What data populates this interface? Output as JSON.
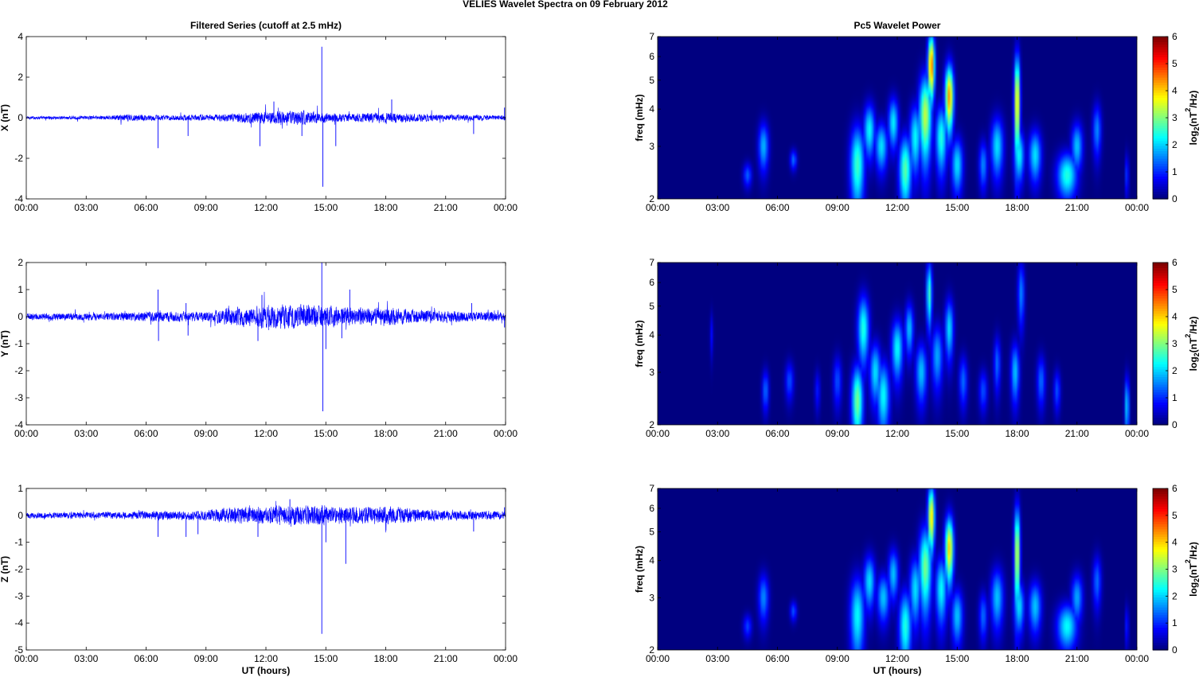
{
  "figure_title": "VELIES Wavelet Spectra on 09 February  2012",
  "left_column_title": "Filtered Series (cutoff at 2.5 mHz)",
  "right_column_title": "Pc5 Wavelet Power",
  "chart_data": [
    {
      "type": "line",
      "component": "X",
      "ylabel": "X (nT)",
      "xlabel": "",
      "ylim": [
        -4,
        4
      ],
      "yticks": [
        -4,
        -2,
        0,
        2,
        4
      ],
      "xticks": [
        "00:00",
        "03:00",
        "06:00",
        "09:00",
        "12:00",
        "15:00",
        "18:00",
        "21:00",
        "00:00"
      ],
      "xlim_hours": [
        0,
        24
      ],
      "line_color": "#0000ff",
      "noise": {
        "base": 0.05,
        "activity": [
          [
            0,
            0.05
          ],
          [
            4,
            0.06
          ],
          [
            5,
            0.12
          ],
          [
            7,
            0.08
          ],
          [
            10,
            0.12
          ],
          [
            12,
            0.2
          ],
          [
            14,
            0.22
          ],
          [
            16,
            0.12
          ],
          [
            18,
            0.18
          ],
          [
            19,
            0.14
          ],
          [
            21,
            0.1
          ],
          [
            24,
            0.08
          ]
        ]
      },
      "spikes": [
        [
          6.6,
          -1.5
        ],
        [
          8.1,
          -0.9
        ],
        [
          11.7,
          -1.4
        ],
        [
          12.4,
          0.8
        ],
        [
          13.8,
          -0.9
        ],
        [
          14.8,
          3.5
        ],
        [
          14.85,
          -3.4
        ],
        [
          15.5,
          -1.4
        ],
        [
          18.3,
          0.9
        ],
        [
          22.4,
          -0.8
        ],
        [
          23.95,
          0.5
        ]
      ]
    },
    {
      "type": "line",
      "component": "Y",
      "ylabel": "Y (nT)",
      "xlabel": "",
      "ylim": [
        -4,
        2
      ],
      "yticks": [
        -4,
        -3,
        -2,
        -1,
        0,
        1,
        2
      ],
      "xticks": [
        "00:00",
        "03:00",
        "06:00",
        "09:00",
        "12:00",
        "15:00",
        "18:00",
        "21:00",
        "00:00"
      ],
      "xlim_hours": [
        0,
        24
      ],
      "line_color": "#0000ff",
      "noise": {
        "base": 0.08,
        "activity": [
          [
            0,
            0.08
          ],
          [
            4,
            0.09
          ],
          [
            6,
            0.12
          ],
          [
            9,
            0.12
          ],
          [
            10,
            0.2
          ],
          [
            12,
            0.28
          ],
          [
            14,
            0.28
          ],
          [
            16,
            0.22
          ],
          [
            18,
            0.22
          ],
          [
            20,
            0.15
          ],
          [
            24,
            0.1
          ]
        ]
      },
      "spikes": [
        [
          6.6,
          1.0
        ],
        [
          6.62,
          -0.9
        ],
        [
          8.0,
          0.5
        ],
        [
          8.1,
          -0.7
        ],
        [
          11.6,
          -0.9
        ],
        [
          11.8,
          0.8
        ],
        [
          14.8,
          2.0
        ],
        [
          14.85,
          -3.5
        ],
        [
          15.0,
          -1.2
        ],
        [
          15.8,
          -0.8
        ],
        [
          16.2,
          1.0
        ],
        [
          22.3,
          0.5
        ],
        [
          23.95,
          -0.4
        ]
      ]
    },
    {
      "type": "line",
      "component": "Z",
      "ylabel": "Z (nT)",
      "xlabel": "UT (hours)",
      "ylim": [
        -5,
        1
      ],
      "yticks": [
        -5,
        -4,
        -3,
        -2,
        -1,
        0,
        1
      ],
      "xticks": [
        "00:00",
        "03:00",
        "06:00",
        "09:00",
        "12:00",
        "15:00",
        "18:00",
        "21:00",
        "00:00"
      ],
      "xlim_hours": [
        0,
        24
      ],
      "line_color": "#0000ff",
      "noise": {
        "base": 0.06,
        "activity": [
          [
            0,
            0.07
          ],
          [
            4,
            0.08
          ],
          [
            6,
            0.1
          ],
          [
            9,
            0.12
          ],
          [
            10,
            0.18
          ],
          [
            12,
            0.22
          ],
          [
            14,
            0.25
          ],
          [
            16,
            0.2
          ],
          [
            18,
            0.22
          ],
          [
            20,
            0.14
          ],
          [
            24,
            0.1
          ]
        ]
      },
      "spikes": [
        [
          6.6,
          -0.8
        ],
        [
          8.0,
          -0.8
        ],
        [
          8.6,
          -0.7
        ],
        [
          11.6,
          -0.8
        ],
        [
          13.2,
          0.6
        ],
        [
          14.8,
          -4.4
        ],
        [
          15.0,
          -1.0
        ],
        [
          16.0,
          -1.8
        ],
        [
          22.4,
          -0.6
        ],
        [
          23.95,
          0.3
        ]
      ]
    },
    {
      "type": "heatmap",
      "component": "X",
      "ylabel": "freq (mHz)",
      "xlabel": "",
      "yscale": "log",
      "ylim": [
        2,
        7
      ],
      "yticks": [
        2,
        3,
        4,
        5,
        6,
        7
      ],
      "xticks": [
        "00:00",
        "03:00",
        "06:00",
        "09:00",
        "12:00",
        "15:00",
        "18:00",
        "21:00",
        "00:00"
      ],
      "xlim_hours": [
        0,
        24
      ],
      "colorbar_label": "log2(nT^2/Hz)",
      "colorbar_label_parts": {
        "base": "log",
        "sub": "2",
        "open": "(nT",
        "sup": "2",
        "close": "/Hz)"
      },
      "colorbar_range": [
        0,
        6
      ],
      "colorbar_ticks": [
        0,
        1,
        2,
        3,
        4,
        5,
        6
      ],
      "colormap": "jet",
      "blobs": [
        [
          4.5,
          2.4,
          0.15,
          0.16,
          1.5
        ],
        [
          5.3,
          3.0,
          0.18,
          0.4,
          2.1
        ],
        [
          6.8,
          2.7,
          0.12,
          0.15,
          1.6
        ],
        [
          10.0,
          2.6,
          0.25,
          0.6,
          3.0
        ],
        [
          10.6,
          3.4,
          0.2,
          0.5,
          2.6
        ],
        [
          11.2,
          3.0,
          0.22,
          0.4,
          2.4
        ],
        [
          11.8,
          3.6,
          0.18,
          0.5,
          2.5
        ],
        [
          12.4,
          2.5,
          0.22,
          0.5,
          3.2
        ],
        [
          12.9,
          3.2,
          0.2,
          0.6,
          2.6
        ],
        [
          13.4,
          3.8,
          0.22,
          0.9,
          3.9
        ],
        [
          13.7,
          5.6,
          0.12,
          1.0,
          5.3
        ],
        [
          14.2,
          3.2,
          0.2,
          0.6,
          2.8
        ],
        [
          14.6,
          4.4,
          0.15,
          0.8,
          5.0
        ],
        [
          15.0,
          2.6,
          0.2,
          0.4,
          2.4
        ],
        [
          16.3,
          2.6,
          0.15,
          0.35,
          1.8
        ],
        [
          17.0,
          3.0,
          0.22,
          0.5,
          2.4
        ],
        [
          18.0,
          4.2,
          0.1,
          1.2,
          4.7
        ],
        [
          18.1,
          2.8,
          0.18,
          0.4,
          2.6
        ],
        [
          18.9,
          2.8,
          0.22,
          0.4,
          2.4
        ],
        [
          20.5,
          2.4,
          0.35,
          0.3,
          2.8
        ],
        [
          21.0,
          3.0,
          0.2,
          0.4,
          2.2
        ],
        [
          22.0,
          3.4,
          0.15,
          0.5,
          1.8
        ],
        [
          23.5,
          2.4,
          0.06,
          0.3,
          1.4
        ]
      ]
    },
    {
      "type": "heatmap",
      "component": "Y",
      "ylabel": "freq (mHz)",
      "xlabel": "",
      "yscale": "log",
      "ylim": [
        2,
        7
      ],
      "yticks": [
        2,
        3,
        4,
        5,
        6,
        7
      ],
      "xticks": [
        "00:00",
        "03:00",
        "06:00",
        "09:00",
        "12:00",
        "15:00",
        "18:00",
        "21:00",
        "00:00"
      ],
      "xlim_hours": [
        0,
        24
      ],
      "colorbar_label": "log2(nT^2/Hz)",
      "colorbar_label_parts": {
        "base": "log",
        "sub": "2",
        "open": "(nT",
        "sup": "2",
        "close": "/Hz)"
      },
      "colorbar_range": [
        0,
        6
      ],
      "colorbar_ticks": [
        0,
        1,
        2,
        3,
        4,
        5,
        6
      ],
      "colormap": "jet",
      "blobs": [
        [
          2.7,
          4.0,
          0.06,
          0.5,
          0.9
        ],
        [
          5.4,
          2.6,
          0.12,
          0.3,
          1.6
        ],
        [
          6.6,
          2.8,
          0.15,
          0.3,
          1.4
        ],
        [
          8.0,
          2.6,
          0.1,
          0.3,
          1.0
        ],
        [
          9.0,
          2.8,
          0.15,
          0.4,
          1.4
        ],
        [
          10.0,
          2.4,
          0.2,
          0.5,
          3.4
        ],
        [
          10.3,
          4.2,
          0.2,
          0.8,
          2.8
        ],
        [
          10.9,
          3.0,
          0.2,
          0.5,
          2.4
        ],
        [
          11.3,
          2.5,
          0.22,
          0.5,
          2.6
        ],
        [
          12.0,
          3.6,
          0.2,
          0.6,
          2.6
        ],
        [
          12.6,
          4.2,
          0.15,
          0.6,
          2.2
        ],
        [
          13.2,
          3.0,
          0.2,
          0.5,
          2.2
        ],
        [
          13.6,
          5.5,
          0.1,
          1.0,
          3.0
        ],
        [
          14.0,
          3.4,
          0.2,
          0.6,
          2.0
        ],
        [
          14.6,
          4.2,
          0.15,
          0.7,
          2.4
        ],
        [
          15.3,
          2.8,
          0.15,
          0.4,
          1.6
        ],
        [
          16.3,
          2.6,
          0.15,
          0.3,
          1.4
        ],
        [
          17.0,
          3.2,
          0.12,
          0.5,
          1.6
        ],
        [
          17.9,
          3.0,
          0.15,
          0.5,
          2.2
        ],
        [
          18.2,
          5.5,
          0.12,
          1.0,
          1.8
        ],
        [
          19.2,
          2.8,
          0.15,
          0.4,
          1.6
        ],
        [
          20.0,
          2.6,
          0.12,
          0.3,
          1.4
        ],
        [
          23.5,
          2.3,
          0.08,
          0.4,
          2.4
        ]
      ]
    },
    {
      "type": "heatmap",
      "component": "Z",
      "ylabel": "freq (mHz)",
      "xlabel": "UT (hours)",
      "yscale": "log",
      "ylim": [
        2,
        7
      ],
      "yticks": [
        2,
        3,
        4,
        5,
        6,
        7
      ],
      "xticks": [
        "00:00",
        "03:00",
        "06:00",
        "09:00",
        "12:00",
        "15:00",
        "18:00",
        "21:00",
        "00:00"
      ],
      "xlim_hours": [
        0,
        24
      ],
      "colorbar_label": "log2(nT^2/Hz)",
      "colorbar_label_parts": {
        "base": "log",
        "sub": "2",
        "open": "(nT",
        "sup": "2",
        "close": "/Hz)"
      },
      "colorbar_range": [
        0,
        6
      ],
      "colorbar_ticks": [
        0,
        1,
        2,
        3,
        4,
        5,
        6
      ],
      "colormap": "jet",
      "blobs": [
        [
          4.5,
          2.4,
          0.15,
          0.16,
          1.3
        ],
        [
          5.3,
          3.0,
          0.18,
          0.4,
          1.8
        ],
        [
          6.8,
          2.7,
          0.12,
          0.15,
          1.4
        ],
        [
          10.0,
          2.6,
          0.25,
          0.6,
          2.6
        ],
        [
          10.6,
          3.4,
          0.2,
          0.5,
          2.4
        ],
        [
          11.3,
          3.0,
          0.22,
          0.4,
          2.2
        ],
        [
          11.8,
          3.6,
          0.18,
          0.5,
          2.2
        ],
        [
          12.4,
          2.4,
          0.22,
          0.5,
          2.8
        ],
        [
          12.9,
          3.2,
          0.2,
          0.6,
          2.4
        ],
        [
          13.4,
          3.8,
          0.22,
          0.9,
          3.4
        ],
        [
          13.7,
          5.6,
          0.12,
          1.0,
          4.6
        ],
        [
          14.2,
          3.2,
          0.2,
          0.6,
          2.6
        ],
        [
          14.6,
          4.4,
          0.15,
          0.8,
          4.6
        ],
        [
          15.0,
          2.6,
          0.2,
          0.4,
          2.2
        ],
        [
          16.3,
          2.6,
          0.15,
          0.35,
          1.6
        ],
        [
          17.0,
          3.0,
          0.22,
          0.5,
          2.2
        ],
        [
          18.0,
          4.2,
          0.1,
          1.2,
          4.2
        ],
        [
          18.1,
          2.8,
          0.18,
          0.4,
          2.4
        ],
        [
          18.9,
          2.8,
          0.22,
          0.4,
          2.2
        ],
        [
          20.5,
          2.4,
          0.35,
          0.3,
          2.6
        ],
        [
          21.0,
          3.0,
          0.2,
          0.4,
          2.0
        ],
        [
          22.0,
          3.4,
          0.15,
          0.5,
          1.6
        ],
        [
          23.5,
          2.4,
          0.06,
          0.3,
          1.2
        ]
      ]
    }
  ]
}
